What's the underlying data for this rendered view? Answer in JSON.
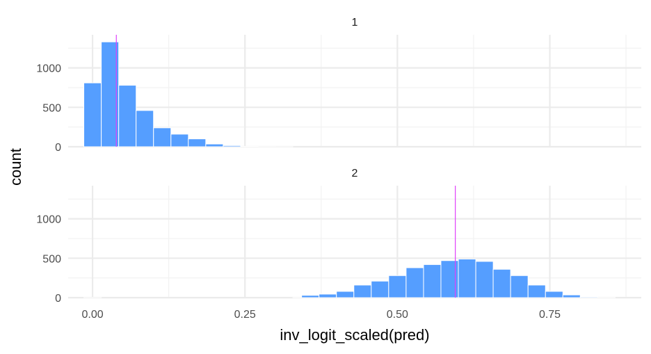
{
  "colors": {
    "bar_fill": "#559EFF",
    "bar_stroke": "#ffffff",
    "mean_line": "#E040FB",
    "grid_major": "#EBEBEB",
    "grid_minor": "#F2F2F2"
  },
  "chart_data": {
    "type": "bar",
    "subtype": "faceted histogram",
    "xlabel": "inv_logit_scaled(pred)",
    "ylabel": "count",
    "xlim": [
      -0.04,
      0.9
    ],
    "ylim": [
      0,
      1420
    ],
    "x_ticks": [
      0.0,
      0.25,
      0.5,
      0.75
    ],
    "x_tick_labels": [
      "0.00",
      "0.25",
      "0.50",
      "0.75"
    ],
    "y_ticks": [
      0,
      500,
      1000
    ],
    "y_tick_labels": [
      "0",
      "500",
      "1000"
    ],
    "bin_width": 0.0286,
    "grid": true,
    "legend": "none",
    "facets": [
      {
        "label": "1",
        "mean_line_x": 0.039,
        "bins": [
          {
            "x0": -0.0143,
            "count": 810
          },
          {
            "x0": 0.0143,
            "count": 1330
          },
          {
            "x0": 0.0429,
            "count": 780
          },
          {
            "x0": 0.0714,
            "count": 460
          },
          {
            "x0": 0.1,
            "count": 240
          },
          {
            "x0": 0.1286,
            "count": 160
          },
          {
            "x0": 0.1571,
            "count": 100
          },
          {
            "x0": 0.1857,
            "count": 35
          },
          {
            "x0": 0.2143,
            "count": 15
          },
          {
            "x0": 0.2429,
            "count": 5
          },
          {
            "x0": 0.2714,
            "count": 2
          },
          {
            "x0": 0.3,
            "count": 1
          }
        ]
      },
      {
        "label": "2",
        "mean_line_x": 0.595,
        "bins": [
          {
            "x0": -0.0143,
            "count": 1
          },
          {
            "x0": 0.3286,
            "count": 2
          },
          {
            "x0": 0.3429,
            "count": 30
          },
          {
            "x0": 0.3714,
            "count": 45
          },
          {
            "x0": 0.4,
            "count": 80
          },
          {
            "x0": 0.4286,
            "count": 160
          },
          {
            "x0": 0.4571,
            "count": 210
          },
          {
            "x0": 0.4857,
            "count": 280
          },
          {
            "x0": 0.5143,
            "count": 380
          },
          {
            "x0": 0.5429,
            "count": 420
          },
          {
            "x0": 0.5714,
            "count": 470
          },
          {
            "x0": 0.6,
            "count": 490
          },
          {
            "x0": 0.6286,
            "count": 460
          },
          {
            "x0": 0.6571,
            "count": 360
          },
          {
            "x0": 0.6857,
            "count": 280
          },
          {
            "x0": 0.7143,
            "count": 160
          },
          {
            "x0": 0.7429,
            "count": 80
          },
          {
            "x0": 0.7714,
            "count": 35
          },
          {
            "x0": 0.8,
            "count": 10
          },
          {
            "x0": 0.8286,
            "count": 2
          }
        ]
      }
    ]
  }
}
